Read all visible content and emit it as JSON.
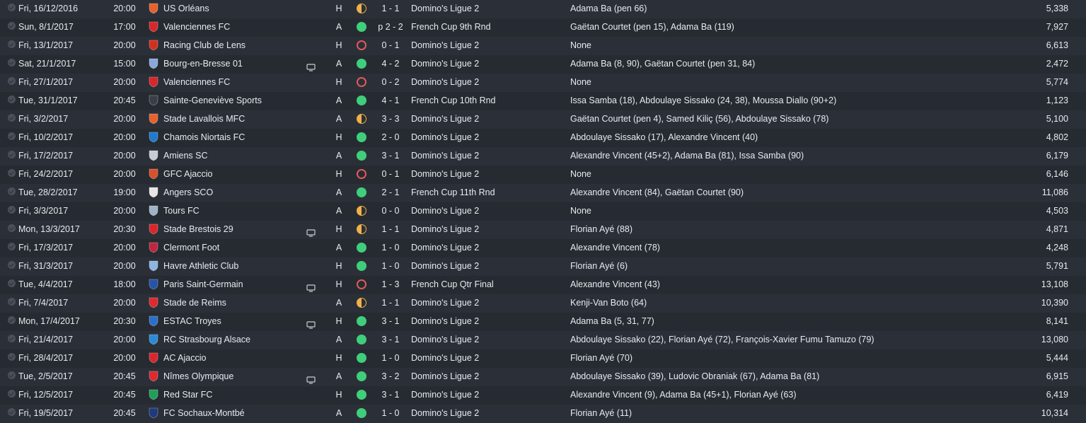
{
  "fixtures": [
    {
      "date": "Fri, 16/12/2016",
      "time": "20:00",
      "team": "US Orléans",
      "badge_color": "#e8612c",
      "tv": false,
      "venue": "H",
      "result": "D",
      "score": "1 - 1",
      "competition": "Domino's Ligue 2",
      "scorers": "Adama Ba (pen 66)",
      "attendance": "5,338"
    },
    {
      "date": "Sun, 8/1/2017",
      "time": "17:00",
      "team": "Valenciennes FC",
      "badge_color": "#d9262b",
      "tv": false,
      "venue": "A",
      "result": "W",
      "score": "p 2 - 2",
      "competition": "French Cup 9th Rnd",
      "scorers": "Gaëtan Courtet (pen 15), Adama Ba (119)",
      "attendance": "7,927"
    },
    {
      "date": "Fri, 13/1/2017",
      "time": "20:00",
      "team": "Racing Club de Lens",
      "badge_color": "#d32f1f",
      "tv": false,
      "venue": "H",
      "result": "L",
      "score": "0 - 1",
      "competition": "Domino's Ligue 2",
      "scorers": "None",
      "attendance": "6,613"
    },
    {
      "date": "Sat, 21/1/2017",
      "time": "15:00",
      "team": "Bourg-en-Bresse 01",
      "badge_color": "#8aa8d8",
      "tv": true,
      "venue": "A",
      "result": "W",
      "score": "4 - 2",
      "competition": "Domino's Ligue 2",
      "scorers": "Adama Ba (8, 90), Gaëtan Courtet (pen 31, 84)",
      "attendance": "2,472"
    },
    {
      "date": "Fri, 27/1/2017",
      "time": "20:00",
      "team": "Valenciennes FC",
      "badge_color": "#d9262b",
      "tv": false,
      "venue": "H",
      "result": "L",
      "score": "0 - 2",
      "competition": "Domino's Ligue 2",
      "scorers": "None",
      "attendance": "5,774"
    },
    {
      "date": "Tue, 31/1/2017",
      "time": "20:45",
      "team": "Sainte-Geneviève Sports",
      "badge_color": "#3a3f47",
      "tv": false,
      "venue": "A",
      "result": "W",
      "score": "4 - 1",
      "competition": "French Cup 10th Rnd",
      "scorers": "Issa Samba (18), Abdoulaye Sissako (24, 38), Moussa Diallo (90+2)",
      "attendance": "1,123"
    },
    {
      "date": "Fri, 3/2/2017",
      "time": "20:00",
      "team": "Stade Lavallois MFC",
      "badge_color": "#e8612c",
      "tv": false,
      "venue": "A",
      "result": "D",
      "score": "3 - 3",
      "competition": "Domino's Ligue 2",
      "scorers": "Gaëtan Courtet (pen 4), Samed Kiliç (56), Abdoulaye Sissako (78)",
      "attendance": "5,100"
    },
    {
      "date": "Fri, 10/2/2017",
      "time": "20:00",
      "team": "Chamois Niortais FC",
      "badge_color": "#1f7ad0",
      "tv": false,
      "venue": "H",
      "result": "W",
      "score": "2 - 0",
      "competition": "Domino's Ligue 2",
      "scorers": "Abdoulaye Sissako (17), Alexandre Vincent (40)",
      "attendance": "4,802"
    },
    {
      "date": "Fri, 17/2/2017",
      "time": "20:00",
      "team": "Amiens SC",
      "badge_color": "#c8cbd0",
      "tv": false,
      "venue": "A",
      "result": "W",
      "score": "3 - 1",
      "competition": "Domino's Ligue 2",
      "scorers": "Alexandre Vincent (45+2), Adama Ba (81), Issa Samba (90)",
      "attendance": "6,179"
    },
    {
      "date": "Fri, 24/2/2017",
      "time": "20:00",
      "team": "GFC Ajaccio",
      "badge_color": "#d9502b",
      "tv": false,
      "venue": "H",
      "result": "L",
      "score": "0 - 1",
      "competition": "Domino's Ligue 2",
      "scorers": "None",
      "attendance": "6,146"
    },
    {
      "date": "Tue, 28/2/2017",
      "time": "19:00",
      "team": "Angers SCO",
      "badge_color": "#e6e6e6",
      "tv": false,
      "venue": "A",
      "result": "W",
      "score": "2 - 1",
      "competition": "French Cup 11th Rnd",
      "scorers": "Alexandre Vincent (84), Gaëtan Courtet (90)",
      "attendance": "11,086"
    },
    {
      "date": "Fri, 3/3/2017",
      "time": "20:00",
      "team": "Tours FC",
      "badge_color": "#9fb3c8",
      "tv": false,
      "venue": "A",
      "result": "D",
      "score": "0 - 0",
      "competition": "Domino's Ligue 2",
      "scorers": "None",
      "attendance": "4,503"
    },
    {
      "date": "Mon, 13/3/2017",
      "time": "20:30",
      "team": "Stade Brestois 29",
      "badge_color": "#d9262b",
      "tv": true,
      "venue": "H",
      "result": "D",
      "score": "1 - 1",
      "competition": "Domino's Ligue 2",
      "scorers": "Florian Ayé (88)",
      "attendance": "4,871"
    },
    {
      "date": "Fri, 17/3/2017",
      "time": "20:00",
      "team": "Clermont Foot",
      "badge_color": "#c0263f",
      "tv": false,
      "venue": "A",
      "result": "W",
      "score": "1 - 0",
      "competition": "Domino's Ligue 2",
      "scorers": "Alexandre Vincent (78)",
      "attendance": "4,248"
    },
    {
      "date": "Fri, 31/3/2017",
      "time": "20:00",
      "team": "Havre Athletic Club",
      "badge_color": "#8fb4e0",
      "tv": false,
      "venue": "H",
      "result": "W",
      "score": "1 - 0",
      "competition": "Domino's Ligue 2",
      "scorers": "Florian Ayé (6)",
      "attendance": "5,791"
    },
    {
      "date": "Tue, 4/4/2017",
      "time": "18:00",
      "team": "Paris Saint-Germain",
      "badge_color": "#2453a8",
      "tv": true,
      "venue": "H",
      "result": "L",
      "score": "1 - 3",
      "competition": "French Cup Qtr Final",
      "scorers": "Alexandre Vincent (43)",
      "attendance": "13,108"
    },
    {
      "date": "Fri, 7/4/2017",
      "time": "20:00",
      "team": "Stade de Reims",
      "badge_color": "#e0282e",
      "tv": false,
      "venue": "A",
      "result": "D",
      "score": "1 - 1",
      "competition": "Domino's Ligue 2",
      "scorers": "Kenji-Van Boto (64)",
      "attendance": "10,390"
    },
    {
      "date": "Mon, 17/4/2017",
      "time": "20:30",
      "team": "ESTAC Troyes",
      "badge_color": "#2c6fc8",
      "tv": true,
      "venue": "H",
      "result": "W",
      "score": "3 - 1",
      "competition": "Domino's Ligue 2",
      "scorers": "Adama Ba (5, 31, 77)",
      "attendance": "8,141"
    },
    {
      "date": "Fri, 21/4/2017",
      "time": "20:00",
      "team": "RC Strasbourg Alsace",
      "badge_color": "#2b8ad6",
      "tv": false,
      "venue": "A",
      "result": "W",
      "score": "3 - 1",
      "competition": "Domino's Ligue 2",
      "scorers": "Abdoulaye Sissako (22), Florian Ayé (72), François-Xavier Fumu Tamuzo (79)",
      "attendance": "13,080"
    },
    {
      "date": "Fri, 28/4/2017",
      "time": "20:00",
      "team": "AC Ajaccio",
      "badge_color": "#d9262b",
      "tv": false,
      "venue": "H",
      "result": "W",
      "score": "1 - 0",
      "competition": "Domino's Ligue 2",
      "scorers": "Florian Ayé (70)",
      "attendance": "5,444"
    },
    {
      "date": "Tue, 2/5/2017",
      "time": "20:45",
      "team": "Nîmes Olympique",
      "badge_color": "#e0282e",
      "tv": true,
      "venue": "A",
      "result": "W",
      "score": "3 - 2",
      "competition": "Domino's Ligue 2",
      "scorers": "Abdoulaye Sissako (39), Ludovic Obraniak (67), Adama Ba (81)",
      "attendance": "6,915"
    },
    {
      "date": "Fri, 12/5/2017",
      "time": "20:45",
      "team": "Red Star FC",
      "badge_color": "#1fa05a",
      "tv": false,
      "venue": "H",
      "result": "W",
      "score": "3 - 1",
      "competition": "Domino's Ligue 2",
      "scorers": "Alexandre Vincent (9), Adama Ba (45+1), Florian Ayé (63)",
      "attendance": "6,419"
    },
    {
      "date": "Fri, 19/5/2017",
      "time": "20:45",
      "team": "FC Sochaux-Montbé",
      "badge_color": "#1f3a7a",
      "tv": false,
      "venue": "A",
      "result": "W",
      "score": "1 - 0",
      "competition": "Domino's Ligue 2",
      "scorers": "Florian Ayé (11)",
      "attendance": "10,314"
    }
  ]
}
